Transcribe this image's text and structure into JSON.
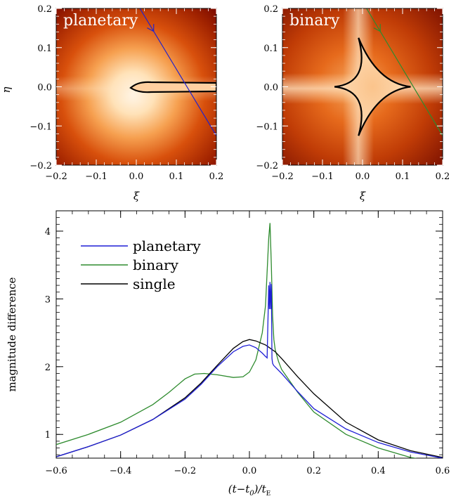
{
  "chart_data": [
    {
      "type": "heatmap",
      "title": "planetary",
      "xlabel": "ξ",
      "ylabel": "η",
      "xlim": [
        -0.2,
        0.2
      ],
      "ylim": [
        -0.2,
        0.2
      ],
      "xticks": [
        "−0.2",
        "−0.1",
        "0.0",
        "0.1",
        "0.2"
      ],
      "yticks": [
        "−0.2",
        "−0.1",
        "0.0",
        "0.1",
        "0.2"
      ],
      "source_trajectory": {
        "x": [
          0.009,
          0.2
        ],
        "y": [
          0.2,
          -0.125
        ],
        "color": "#2222cc"
      },
      "caustic": {
        "x_range": [
          -0.015,
          0.2
        ],
        "y_halfwidth": 0.018,
        "cusp_x": -0.015,
        "color": "#000000"
      }
    },
    {
      "type": "heatmap",
      "title": "binary",
      "xlabel": "ξ",
      "ylabel": "",
      "xlim": [
        -0.2,
        0.2
      ],
      "ylim": [
        -0.2,
        0.2
      ],
      "xticks": [
        "−0.2",
        "−0.1",
        "0.0",
        "0.1",
        "0.2"
      ],
      "yticks": [
        "−0.2",
        "−0.1",
        "0.0",
        "0.1",
        "0.2"
      ],
      "source_trajectory": {
        "x": [
          0.01,
          0.2
        ],
        "y": [
          0.2,
          -0.125
        ],
        "color": "#2e8b2e"
      },
      "caustic": {
        "cusps": [
          [
            -0.07,
            0.0
          ],
          [
            0.12,
            0.0
          ],
          [
            -0.01,
            0.125
          ],
          [
            -0.01,
            -0.125
          ]
        ],
        "color": "#000000"
      }
    },
    {
      "type": "line",
      "title": "",
      "xlabel": "(t−t0)/tE",
      "ylabel": "magnitude difference",
      "xlim": [
        -0.6,
        0.6
      ],
      "ylim": [
        0.65,
        4.3
      ],
      "xticks": [
        "−0.6",
        "−0.4",
        "−0.2",
        "0.0",
        "0.2",
        "0.4",
        "0.6"
      ],
      "yticks": [
        "1",
        "2",
        "3",
        "4"
      ],
      "legend_position": "top-left",
      "series": [
        {
          "name": "planetary",
          "color": "#1f1fd6",
          "x": [
            -0.6,
            -0.5,
            -0.4,
            -0.3,
            -0.2,
            -0.15,
            -0.1,
            -0.05,
            -0.02,
            0.0,
            0.02,
            0.04,
            0.05,
            0.055,
            0.06,
            0.062,
            0.064,
            0.066,
            0.068,
            0.07,
            0.072,
            0.075,
            0.1,
            0.15,
            0.2,
            0.3,
            0.4,
            0.5,
            0.6
          ],
          "y": [
            0.67,
            0.82,
            0.99,
            1.22,
            1.52,
            1.74,
            2.0,
            2.22,
            2.3,
            2.32,
            2.28,
            2.2,
            2.15,
            2.13,
            3.2,
            2.85,
            3.25,
            2.85,
            3.22,
            2.12,
            2.05,
            2.02,
            1.9,
            1.63,
            1.38,
            1.08,
            0.88,
            0.74,
            0.65
          ]
        },
        {
          "name": "binary",
          "color": "#2e8b2e",
          "x": [
            -0.6,
            -0.5,
            -0.4,
            -0.3,
            -0.25,
            -0.2,
            -0.17,
            -0.14,
            -0.1,
            -0.05,
            -0.02,
            0.0,
            0.02,
            0.04,
            0.05,
            0.055,
            0.06,
            0.064,
            0.068,
            0.072,
            0.076,
            0.08,
            0.09,
            0.1,
            0.15,
            0.2,
            0.3,
            0.4,
            0.5,
            0.6
          ],
          "y": [
            0.85,
            1.0,
            1.18,
            1.44,
            1.62,
            1.82,
            1.89,
            1.9,
            1.88,
            1.84,
            1.85,
            1.92,
            2.1,
            2.5,
            2.9,
            3.4,
            3.9,
            4.12,
            3.5,
            2.75,
            2.4,
            2.25,
            2.08,
            1.96,
            1.62,
            1.33,
            1.0,
            0.8,
            0.66,
            0.58
          ]
        },
        {
          "name": "single",
          "color": "#000000",
          "x": [
            -0.6,
            -0.5,
            -0.4,
            -0.3,
            -0.2,
            -0.15,
            -0.1,
            -0.05,
            -0.02,
            0.0,
            0.02,
            0.05,
            0.08,
            0.1,
            0.15,
            0.2,
            0.3,
            0.4,
            0.5,
            0.6
          ],
          "y": [
            0.67,
            0.82,
            0.99,
            1.22,
            1.54,
            1.76,
            2.02,
            2.27,
            2.37,
            2.4,
            2.38,
            2.32,
            2.22,
            2.12,
            1.85,
            1.6,
            1.18,
            0.92,
            0.76,
            0.66
          ]
        }
      ]
    }
  ],
  "colors": {
    "heat_dark": "#7a0a00",
    "heat_mid": "#e05a10",
    "heat_light": "#ffd8a0",
    "heat_white": "#fff5e6"
  }
}
